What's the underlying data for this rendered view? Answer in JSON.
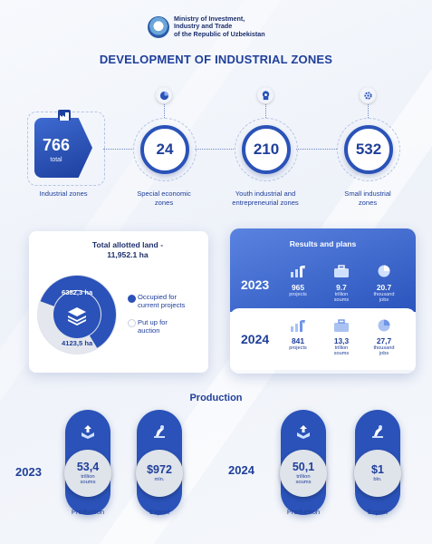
{
  "header": {
    "ministry_line1": "Ministry of Investment,",
    "ministry_line2": "Industry and Trade",
    "ministry_line3": "of the Republic of Uzbekistan",
    "title": "DEVELOPMENT OF INDUSTRIAL ZONES"
  },
  "stats": {
    "industrial": {
      "value": "766",
      "sub": "total",
      "label": "Industrial zones"
    },
    "special": {
      "value": "24",
      "label_line1": "Special economic",
      "label_line2": "zones",
      "icon": "pie-chart-icon"
    },
    "youth": {
      "value": "210",
      "label_line1": "Youth industrial and",
      "label_line2": "entrepreneurial zones",
      "icon": "head-gears-icon"
    },
    "small": {
      "value": "532",
      "label_line1": "Small industrial",
      "label_line2": "zones",
      "icon": "gears-icon"
    }
  },
  "land": {
    "title_line1": "Total allotted land -",
    "title_line2": "11,952.1 ha",
    "occupied_value": "6382,3 ha",
    "auction_value": "4123,5 ha",
    "occupied_fraction": 0.607,
    "legend_occupied_line1": "Occupied for",
    "legend_occupied_line2": "current projects",
    "legend_auction_line1": "Put up for",
    "legend_auction_line2": "auction",
    "colors": {
      "occupied": "#2a52b8",
      "auction": "#e4e7ee"
    }
  },
  "results": {
    "title": "Results and plans",
    "rows": [
      {
        "year": "2023",
        "projects": "965",
        "projects_unit": "projects",
        "soums": "9.7",
        "soums_unit1": "trillion",
        "soums_unit2": "soums",
        "jobs": "20.7",
        "jobs_unit1": "thousand",
        "jobs_unit2": "jobs"
      },
      {
        "year": "2024",
        "projects": "841",
        "projects_unit": "projects",
        "soums": "13,3",
        "soums_unit1": "trillion",
        "soums_unit2": "soums",
        "jobs": "27,7",
        "jobs_unit1": "thousand",
        "jobs_unit2": "jobs"
      }
    ]
  },
  "production": {
    "title": "Production",
    "groups": [
      {
        "year": "2023",
        "production": {
          "value": "53,4",
          "unit1": "trillion",
          "unit2": "soums",
          "label": "Production"
        },
        "export": {
          "value": "$972",
          "unit": "mln.",
          "label": "Export"
        }
      },
      {
        "year": "2024",
        "production": {
          "value": "50,1",
          "unit1": "trillion",
          "unit2": "soums",
          "label": "Production"
        },
        "export": {
          "value": "$1",
          "unit": "bln.",
          "label": "Export"
        }
      }
    ]
  },
  "colors": {
    "primary": "#2a52b8",
    "dark_text": "#1d2f6b",
    "accent_light": "#5a83e0"
  }
}
